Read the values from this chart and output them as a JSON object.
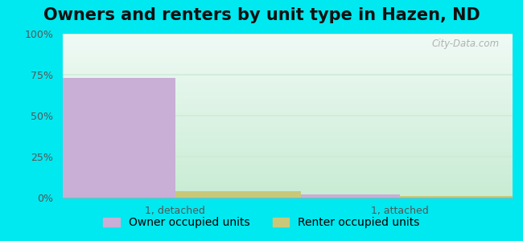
{
  "title": "Owners and renters by unit type in Hazen, ND",
  "categories": [
    "1, detached",
    "1, attached"
  ],
  "owner_values": [
    73,
    2
  ],
  "renter_values": [
    4,
    1
  ],
  "owner_color": "#c9aed6",
  "renter_color": "#c8c87a",
  "ylim": [
    0,
    100
  ],
  "yticks": [
    0,
    25,
    50,
    75,
    100
  ],
  "ytick_labels": [
    "0%",
    "25%",
    "50%",
    "75%",
    "100%"
  ],
  "bar_width": 0.28,
  "legend_owner": "Owner occupied units",
  "legend_renter": "Renter occupied units",
  "bg_color_outer": "#00e8f0",
  "bg_grad_top": "#f0faf5",
  "bg_grad_bottom": "#c8ecd4",
  "watermark": "City-Data.com",
  "title_fontsize": 15,
  "tick_fontsize": 9,
  "legend_fontsize": 10,
  "grid_color": "#d0ead8",
  "tick_color": "#555555"
}
